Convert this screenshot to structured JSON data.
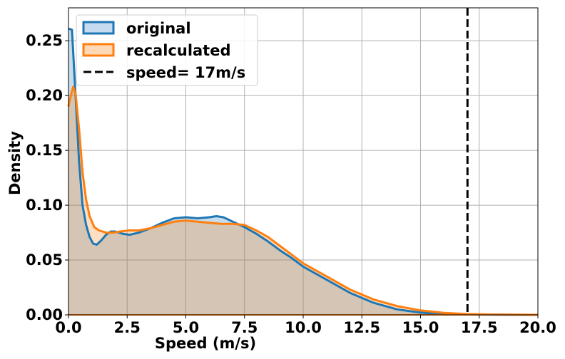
{
  "chart_data": {
    "type": "area",
    "title": "",
    "xlabel": "Speed (m/s)",
    "ylabel": "Density",
    "xlim": [
      0,
      20
    ],
    "ylim": [
      0,
      0.28
    ],
    "xticks": [
      0,
      2.5,
      5,
      7.5,
      10,
      12.5,
      15,
      17.5,
      20
    ],
    "xtick_labels": [
      "0.0",
      "2.5",
      "5.0",
      "7.5",
      "10.0",
      "12.5",
      "15.0",
      "17.5",
      "20.0"
    ],
    "yticks": [
      0,
      0.05,
      0.1,
      0.15,
      0.2,
      0.25
    ],
    "ytick_labels": [
      "0.00",
      "0.05",
      "0.10",
      "0.15",
      "0.20",
      "0.25"
    ],
    "grid": true,
    "legend_position": "top-left",
    "series": [
      {
        "name": "original",
        "color": "#1f77b4",
        "fill": "#c6dbef",
        "x": [
          0,
          0.15,
          0.3,
          0.45,
          0.6,
          0.75,
          0.9,
          1.05,
          1.2,
          1.4,
          1.6,
          1.8,
          2.0,
          2.3,
          2.6,
          3.0,
          3.5,
          4.0,
          4.5,
          5.0,
          5.5,
          6.0,
          6.3,
          6.6,
          7.0,
          7.5,
          8.0,
          8.5,
          9.0,
          9.5,
          10.0,
          11.0,
          12.0,
          13.0,
          14.0,
          15.0,
          16.0,
          17.0,
          18.0,
          19.0,
          20.0
        ],
        "values": [
          0.261,
          0.26,
          0.2,
          0.14,
          0.1,
          0.082,
          0.071,
          0.065,
          0.064,
          0.068,
          0.073,
          0.076,
          0.076,
          0.074,
          0.073,
          0.075,
          0.079,
          0.084,
          0.088,
          0.089,
          0.088,
          0.089,
          0.09,
          0.089,
          0.085,
          0.08,
          0.074,
          0.067,
          0.059,
          0.052,
          0.044,
          0.032,
          0.02,
          0.011,
          0.005,
          0.002,
          0.0008,
          0.0003,
          0.0001,
          3e-05,
          0.0
        ]
      },
      {
        "name": "recalculated",
        "color": "#ff7f0e",
        "fill": "#ffd8b5",
        "x": [
          0,
          0.1,
          0.2,
          0.3,
          0.45,
          0.6,
          0.75,
          0.9,
          1.1,
          1.3,
          1.6,
          1.9,
          2.2,
          2.6,
          3.0,
          3.5,
          4.0,
          4.5,
          5.0,
          5.5,
          6.0,
          6.5,
          7.0,
          7.5,
          8.0,
          8.5,
          9.0,
          9.5,
          10.0,
          11.0,
          12.0,
          13.0,
          14.0,
          15.0,
          16.0,
          17.0,
          18.0,
          19.0,
          20.0
        ],
        "values": [
          0.19,
          0.2,
          0.208,
          0.202,
          0.17,
          0.13,
          0.105,
          0.09,
          0.08,
          0.077,
          0.075,
          0.075,
          0.076,
          0.077,
          0.077,
          0.079,
          0.082,
          0.085,
          0.086,
          0.085,
          0.084,
          0.083,
          0.083,
          0.082,
          0.077,
          0.071,
          0.063,
          0.055,
          0.047,
          0.035,
          0.023,
          0.014,
          0.008,
          0.004,
          0.0018,
          0.0007,
          0.0003,
          0.0001,
          0.0
        ]
      }
    ],
    "reference_lines": [
      {
        "name": "speed= 17m/s",
        "x": 17,
        "style": "dashed",
        "color": "#000000"
      }
    ]
  }
}
